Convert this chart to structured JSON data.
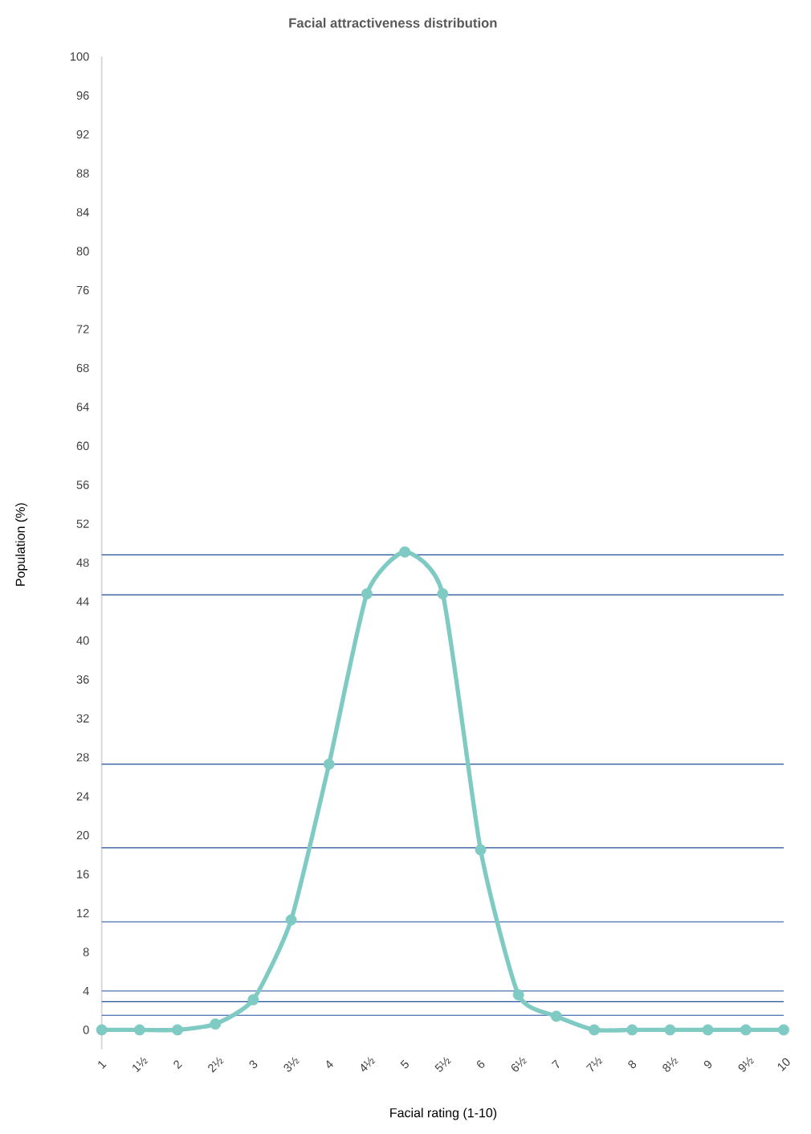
{
  "chart_data": {
    "type": "line",
    "title": "Facial attractiveness distribution",
    "xlabel": "Facial rating (1-10)",
    "ylabel": "Population (%)",
    "x": [
      1,
      1.5,
      2,
      2.5,
      3,
      3.5,
      4,
      4.5,
      5,
      5.5,
      6,
      6.5,
      7,
      7.5,
      8,
      8.5,
      9,
      9.5,
      10
    ],
    "series": [
      {
        "color": "#7fcbc4",
        "values": [
          0,
          0,
          0,
          0.6,
          3.1,
          11.3,
          27.3,
          44.8,
          49.1,
          44.8,
          18.5,
          3.6,
          1.4,
          0,
          0,
          0,
          0,
          0,
          0
        ]
      }
    ],
    "xlim": [
      1,
      10
    ],
    "ylim": [
      -2,
      100
    ],
    "xticks": [
      1,
      {
        "value": 1.5,
        "label": "1½"
      },
      2,
      {
        "value": 2.5,
        "label": "2½"
      },
      3,
      {
        "value": 3.5,
        "label": "3½"
      },
      4,
      {
        "value": 4.5,
        "label": "4½"
      },
      5,
      {
        "value": 5.5,
        "label": "5½"
      },
      6,
      {
        "value": 6.5,
        "label": "6½"
      },
      7,
      {
        "value": 7.5,
        "label": "7½"
      },
      8,
      {
        "value": 8.5,
        "label": "8½"
      },
      9,
      {
        "value": 9.5,
        "label": "9½"
      },
      10
    ],
    "yticks": [
      0,
      4,
      8,
      12,
      16,
      20,
      24,
      28,
      32,
      36,
      40,
      44,
      48,
      52,
      56,
      60,
      64,
      68,
      72,
      76,
      80,
      84,
      88,
      92,
      96,
      100
    ],
    "marker": "circle",
    "grid": false,
    "ref_lines": [
      {
        "axis": "y",
        "value": 48.8,
        "color": "#1f4e9c"
      },
      {
        "axis": "y",
        "value": 44.7,
        "color": "#1f4e9c"
      },
      {
        "axis": "y",
        "value": 27.3,
        "color": "#1f4e9c"
      },
      {
        "axis": "y",
        "value": 18.7,
        "color": "#1f4e9c"
      },
      {
        "axis": "y",
        "value": 11.1,
        "color": "#1f4e9c"
      },
      {
        "axis": "y",
        "value": 4.0,
        "color": "#1f4e9c"
      },
      {
        "axis": "y",
        "value": 2.9,
        "color": "#1f4e9c"
      },
      {
        "axis": "y",
        "value": 1.5,
        "color": "#1f4e9c"
      }
    ]
  }
}
